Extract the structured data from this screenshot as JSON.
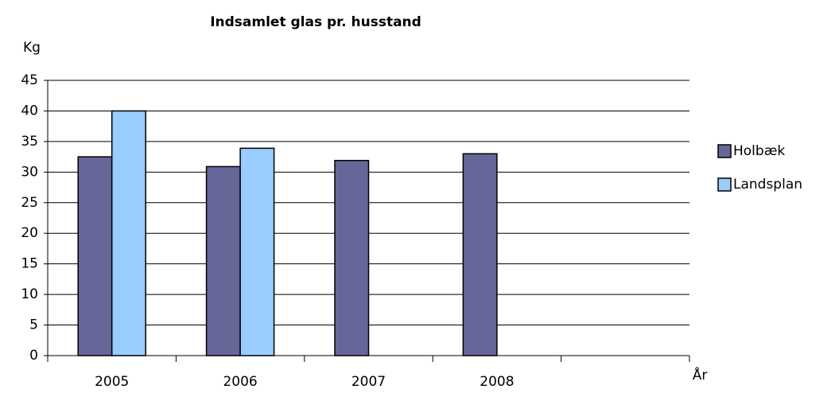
{
  "chart_data": {
    "type": "bar",
    "title": "Indsamlet glas pr. husstand",
    "y_label": "Kg",
    "x_label": "År",
    "categories": [
      "2005",
      "2006",
      "2007",
      "2008",
      null
    ],
    "series": [
      {
        "name": "Holbæk",
        "color": "#666699",
        "values": [
          32.5,
          30.9,
          31.9,
          33.0,
          null
        ]
      },
      {
        "name": "Landsplan",
        "color": "#99ccff",
        "values": [
          40.0,
          33.9,
          null,
          null,
          null
        ]
      }
    ],
    "ylim": [
      0,
      45
    ],
    "yticks": [
      0,
      5,
      10,
      15,
      20,
      25,
      30,
      35,
      40,
      45
    ],
    "grid": true,
    "legend": "right"
  }
}
